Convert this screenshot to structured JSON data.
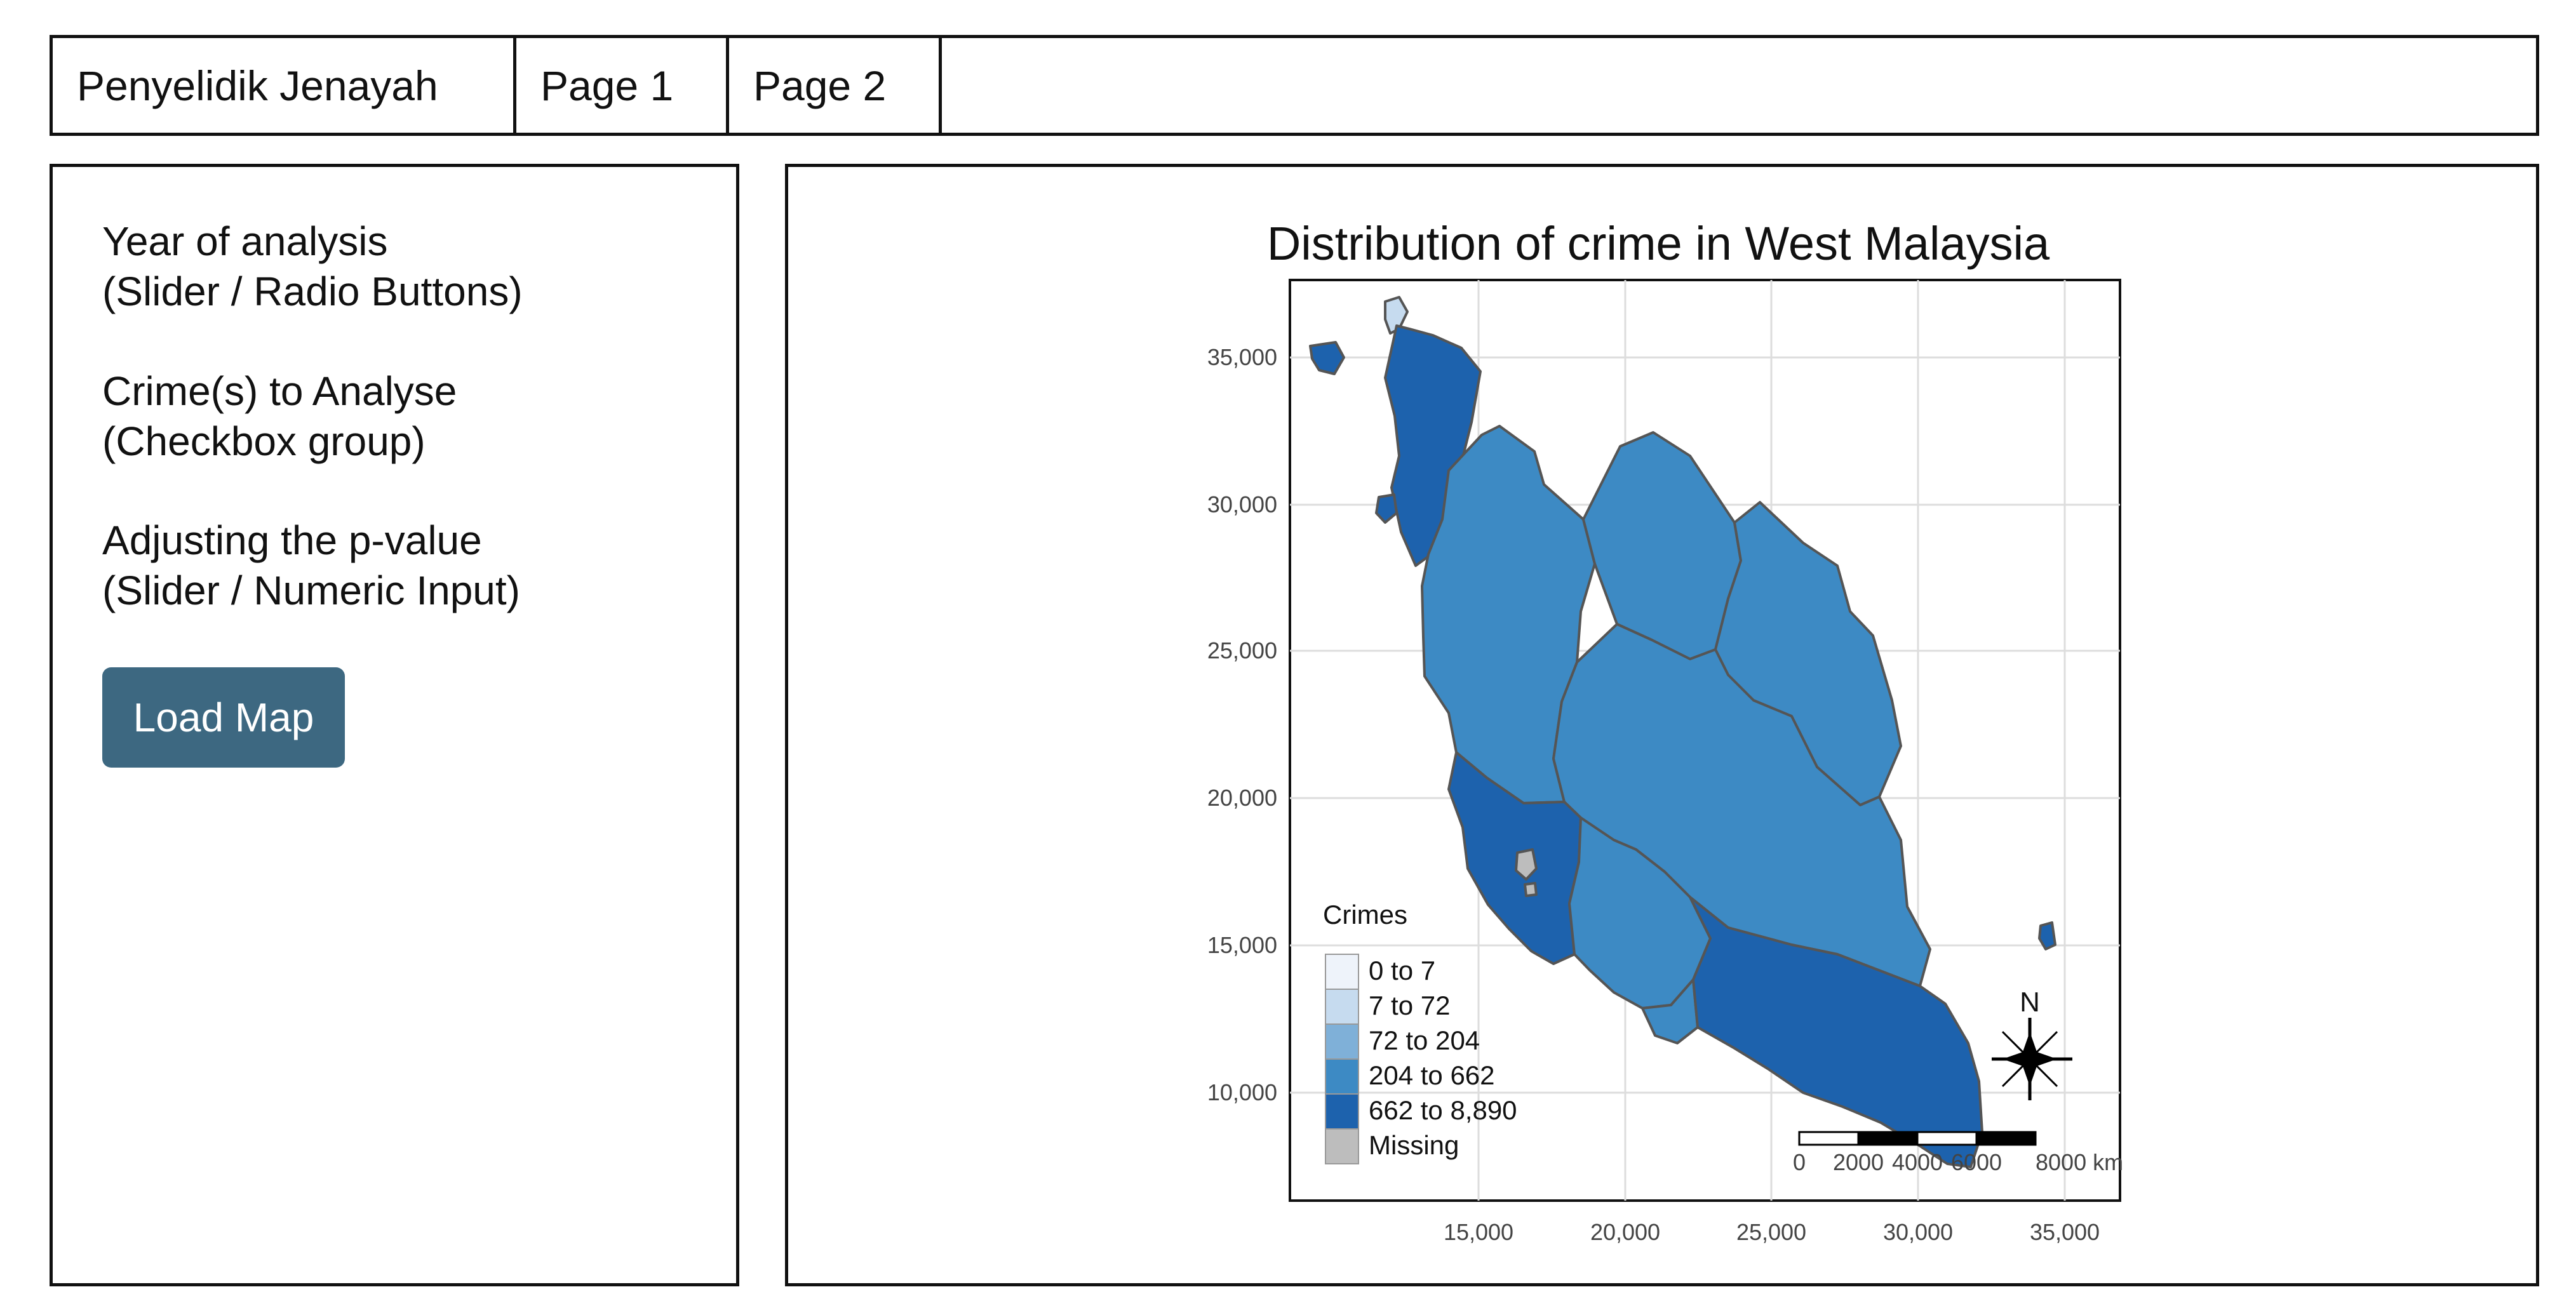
{
  "navbar": {
    "brand": "Penyelidik Jenayah",
    "tabs": [
      {
        "label": "Page 1"
      },
      {
        "label": "Page 2"
      }
    ]
  },
  "sidebar": {
    "year": {
      "line1": "Year of analysis",
      "line2": "(Slider / Radio Buttons)"
    },
    "crimes": {
      "line1": "Crime(s) to Analyse",
      "line2": "(Checkbox group)"
    },
    "pvalue": {
      "line1": "Adjusting the p-value",
      "line2": "(Slider / Numeric Input)"
    },
    "load_button": "Load Map"
  },
  "map": {
    "title": "Distribution of crime in West Malaysia",
    "x_ticks": [
      "15,000",
      "20,000",
      "25,000",
      "30,000",
      "35,000"
    ],
    "y_ticks": [
      "35,000",
      "30,000",
      "25,000",
      "20,000",
      "15,000",
      "10,000"
    ],
    "legend": {
      "title": "Crimes",
      "items": [
        {
          "label": "0 to 7",
          "color": "#eef3fa"
        },
        {
          "label": "7 to 72",
          "color": "#c6dbef"
        },
        {
          "label": "72 to 204",
          "color": "#7fb0d8"
        },
        {
          "label": "204 to 662",
          "color": "#3d8ac4"
        },
        {
          "label": "662 to 8,890",
          "color": "#1d62ad"
        },
        {
          "label": "Missing",
          "color": "#bdbdbd"
        }
      ]
    },
    "north_label": "N",
    "scale_labels": [
      "0",
      "2000",
      "4000",
      "6000",
      "8000 km"
    ]
  }
}
